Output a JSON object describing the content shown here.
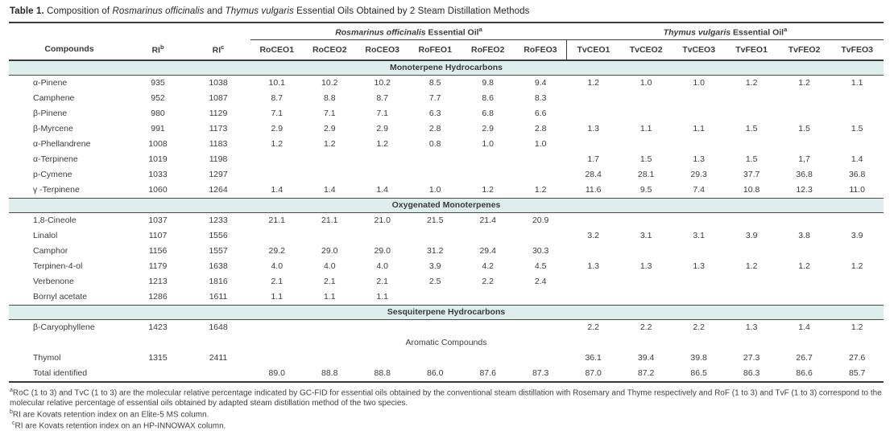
{
  "title": {
    "label": "Table 1.",
    "t1": " Composition of ",
    "species1": "Rosmarinus officinalis",
    "t2": " and ",
    "species2": "Thymus vulgaris",
    "t3": " Essential Oils Obtained by 2 Steam Distillation Methods"
  },
  "table": {
    "col_compounds": "Compounds",
    "col_ri_b": {
      "label": "RI",
      "sup": "b"
    },
    "col_ri_c": {
      "label": "RI",
      "sup": "c"
    },
    "groups": [
      {
        "species": "Rosmarinus officinalis",
        "rest": " Essential Oil",
        "sup": "a"
      },
      {
        "species": "Thymus vulgaris",
        "rest": " Essential Oil",
        "sup": "a"
      }
    ],
    "sample_columns": [
      "RoCEO1",
      "RoCEO2",
      "RoCEO3",
      "RoFEO1",
      "RoFEO2",
      "RoFEO3",
      "TvCEO1",
      "TvCEO2",
      "TvCEO3",
      "TvFEO1",
      "TvFEO2",
      "TvFEO3"
    ],
    "sections": [
      {
        "label": "Monoterpene Hydrocarbons",
        "shaded": true,
        "rows": [
          {
            "compound": "α-Pinene",
            "ri_b": "935",
            "ri_c": "1038",
            "values": [
              "10.1",
              "10.2",
              "10.2",
              "8.5",
              "9.8",
              "9.4",
              "1.2",
              "1.0",
              "1.0",
              "1.2",
              "1.2",
              "1.1"
            ]
          },
          {
            "compound": "Camphene",
            "ri_b": "952",
            "ri_c": "1087",
            "values": [
              "8.7",
              "8.8",
              "8.7",
              "7.7",
              "8.6",
              "8.3",
              "",
              "",
              "",
              "",
              "",
              ""
            ]
          },
          {
            "compound": "β-Pinene",
            "ri_b": "980",
            "ri_c": "1129",
            "values": [
              "7.1",
              "7.1",
              "7.1",
              "6.3",
              "6.8",
              "6.6",
              "",
              "",
              "",
              "",
              "",
              ""
            ]
          },
          {
            "compound": "β-Myrcene",
            "ri_b": "991",
            "ri_c": "1173",
            "values": [
              "2.9",
              "2.9",
              "2.9",
              "2.8",
              "2.9",
              "2.8",
              "1.3",
              "1.1",
              "1.1",
              "1.5",
              "1.5",
              "1.5"
            ]
          },
          {
            "compound": "α-Phellandrene",
            "ri_b": "1008",
            "ri_c": "1183",
            "values": [
              "1.2",
              "1.2",
              "1.2",
              "0.8",
              "1.0",
              "1.0",
              "",
              "",
              "",
              "",
              "",
              ""
            ]
          },
          {
            "compound": "α-Terpinene",
            "ri_b": "1019",
            "ri_c": "1198",
            "values": [
              "",
              "",
              "",
              "",
              "",
              "",
              "1.7",
              "1.5",
              "1.3",
              "1.5",
              "1,7",
              "1.4"
            ]
          },
          {
            "compound": "p-Cymene",
            "ri_b": "1033",
            "ri_c": "1297",
            "values": [
              "",
              "",
              "",
              "",
              "",
              "",
              "28.4",
              "28.1",
              "29.3",
              "37.7",
              "36.8",
              "36.8"
            ]
          },
          {
            "compound": "γ -Terpinene",
            "ri_b": "1060",
            "ri_c": "1264",
            "values": [
              "1.4",
              "1.4",
              "1.4",
              "1.0",
              "1.2",
              "1.2",
              "11.6",
              "9.5",
              "7.4",
              "10.8",
              "12.3",
              "11.0"
            ]
          }
        ]
      },
      {
        "label": "Oxygenated Monoterpenes",
        "shaded": true,
        "rows": [
          {
            "compound": "1,8-Cineole",
            "ri_b": "1037",
            "ri_c": "1233",
            "values": [
              "21.1",
              "21.1",
              "21.0",
              "21.5",
              "21.4",
              "20.9",
              "",
              "",
              "",
              "",
              "",
              ""
            ]
          },
          {
            "compound": "Linalol",
            "ri_b": "1107",
            "ri_c": "1556",
            "values": [
              "",
              "",
              "",
              "",
              "",
              "",
              "3.2",
              "3.1",
              "3.1",
              "3.9",
              "3.8",
              "3.9"
            ]
          },
          {
            "compound": "Camphor",
            "ri_b": "1156",
            "ri_c": "1557",
            "values": [
              "29.2",
              "29.0",
              "29.0",
              "31.2",
              "29.4",
              "30.3",
              "",
              "",
              "",
              "",
              "",
              ""
            ]
          },
          {
            "compound": "Terpinen-4-ol",
            "ri_b": "1179",
            "ri_c": "1638",
            "values": [
              "4.0",
              "4.0",
              "4.0",
              "3.9",
              "4.2",
              "4.5",
              "1.3",
              "1.3",
              "1.3",
              "1.2",
              "1.2",
              "1.2"
            ]
          },
          {
            "compound": "Verbenone",
            "ri_b": "1213",
            "ri_c": "1816",
            "values": [
              "2.1",
              "2.1",
              "2.1",
              "2.5",
              "2.2",
              "2.4",
              "",
              "",
              "",
              "",
              "",
              ""
            ]
          },
          {
            "compound": "Bornyl acetate",
            "ri_b": "1286",
            "ri_c": "1611",
            "values": [
              "1.1",
              "1.1",
              "1.1",
              "",
              "",
              "",
              "",
              "",
              "",
              "",
              "",
              ""
            ]
          }
        ]
      },
      {
        "label": "Sesquiterpene Hydrocarbons",
        "shaded": true,
        "rows": [
          {
            "compound": "β-Caryophyllene",
            "ri_b": "1423",
            "ri_c": "1648",
            "values": [
              "",
              "",
              "",
              "",
              "",
              "",
              "2.2",
              "2.2",
              "2.2",
              "1.3",
              "1.4",
              "1.2"
            ]
          }
        ]
      },
      {
        "label": "Aromatic Compounds",
        "shaded": false,
        "rows": [
          {
            "compound": "Thymol",
            "ri_b": "1315",
            "ri_c": "2411",
            "values": [
              "",
              "",
              "",
              "",
              "",
              "",
              "36.1",
              "39.4",
              "39.8",
              "27.3",
              "26.7",
              "27.6"
            ]
          }
        ]
      }
    ],
    "total_row": {
      "compound": "Total identified",
      "ri_b": "",
      "ri_c": "",
      "values": [
        "89.0",
        "88.8",
        "88.8",
        "86.0",
        "87.6",
        "87.3",
        "87.0",
        "87.2",
        "86.5",
        "86.3",
        "86.6",
        "85.7"
      ]
    }
  },
  "footnotes": [
    {
      "sup": "a",
      "text": "RoC (1 to 3) and TvC (1 to 3) are the molecular relative percentage indicated by GC-FID for essential oils obtained by the conventional steam distillation with Rosemary and Thyme respectively and RoF (1 to 3) and TvF (1 to 3) correspond to the molecular relative percentage of essential oils obtained by adapted steam distillation method of the two species."
    },
    {
      "sup": "b",
      "text": "RI are Kovats retention index on an Elite-5 MS column."
    },
    {
      "sup": "c",
      "text": "RI are Kovats retention index on an HP-INNOWAX column."
    }
  ],
  "colors": {
    "section_band": "#deeeed",
    "rule": "#3a3a3a",
    "text": "#3b3b3b"
  }
}
